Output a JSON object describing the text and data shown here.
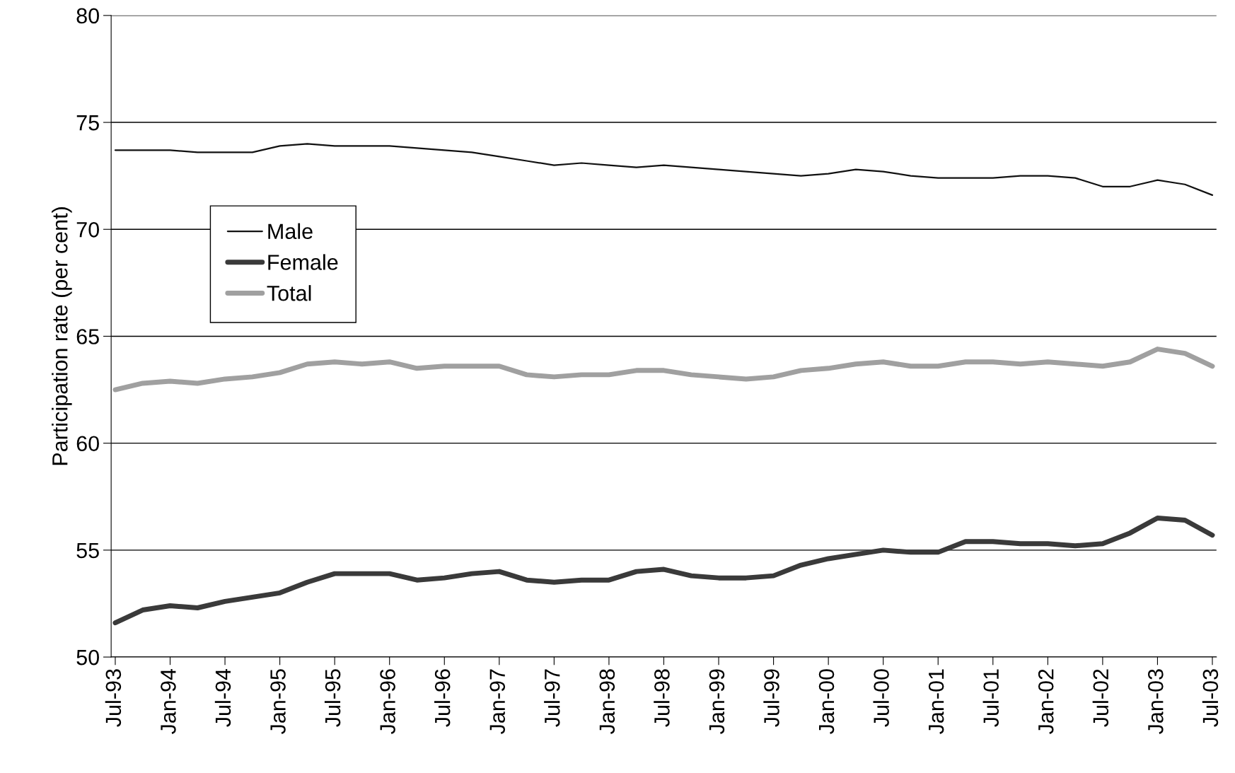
{
  "chart_data": {
    "type": "line",
    "ylabel": "Participation rate (per cent)",
    "categories": [
      "Jul-93",
      null,
      "Jan-94",
      null,
      "Jul-94",
      null,
      "Jan-95",
      null,
      "Jul-95",
      null,
      "Jan-96",
      null,
      "Jul-96",
      null,
      "Jan-97",
      null,
      "Jul-97",
      null,
      "Jan-98",
      null,
      "Jul-98",
      null,
      "Jan-99",
      null,
      "Jul-99",
      null,
      "Jan-00",
      null,
      "Jul-00",
      null,
      "Jan-01",
      null,
      "Jul-01",
      null,
      "Jan-02",
      null,
      "Jul-02",
      null,
      "Jan-03",
      null,
      "Jul-03"
    ],
    "series": [
      {
        "name": "Male",
        "color": "#111111",
        "values": [
          73.7,
          73.7,
          73.7,
          73.6,
          73.6,
          73.6,
          73.9,
          74.0,
          73.9,
          73.9,
          73.9,
          73.8,
          73.7,
          73.6,
          73.4,
          73.2,
          73.0,
          73.1,
          73.0,
          72.9,
          73.0,
          72.9,
          72.8,
          72.7,
          72.6,
          72.5,
          72.6,
          72.8,
          72.7,
          72.5,
          72.4,
          72.4,
          72.4,
          72.5,
          72.5,
          72.4,
          72.0,
          72.0,
          72.3,
          72.1,
          71.6
        ]
      },
      {
        "name": "Female",
        "color": "#3a3a3a",
        "values": [
          51.6,
          52.2,
          52.4,
          52.3,
          52.6,
          52.8,
          53.0,
          53.5,
          53.9,
          53.9,
          53.9,
          53.6,
          53.7,
          53.9,
          54.0,
          53.6,
          53.5,
          53.6,
          53.6,
          54.0,
          54.1,
          53.8,
          53.7,
          53.7,
          53.8,
          54.3,
          54.6,
          54.8,
          55.0,
          54.9,
          54.9,
          55.4,
          55.4,
          55.3,
          55.3,
          55.2,
          55.3,
          55.8,
          56.5,
          56.4,
          55.7
        ]
      },
      {
        "name": "Total",
        "color": "#a0a0a0",
        "values": [
          62.5,
          62.8,
          62.9,
          62.8,
          63.0,
          63.1,
          63.3,
          63.7,
          63.8,
          63.7,
          63.8,
          63.5,
          63.6,
          63.6,
          63.6,
          63.2,
          63.1,
          63.2,
          63.2,
          63.4,
          63.4,
          63.2,
          63.1,
          63.0,
          63.1,
          63.4,
          63.5,
          63.7,
          63.8,
          63.6,
          63.6,
          63.8,
          63.8,
          63.7,
          63.8,
          63.7,
          63.6,
          63.8,
          64.4,
          64.2,
          63.6
        ]
      }
    ],
    "ylim": [
      50,
      80
    ],
    "yticks": [
      50,
      55,
      60,
      65,
      70,
      75,
      80
    ],
    "grid": "y",
    "legend": "top left",
    "marker": "none",
    "line_style": "solid"
  }
}
